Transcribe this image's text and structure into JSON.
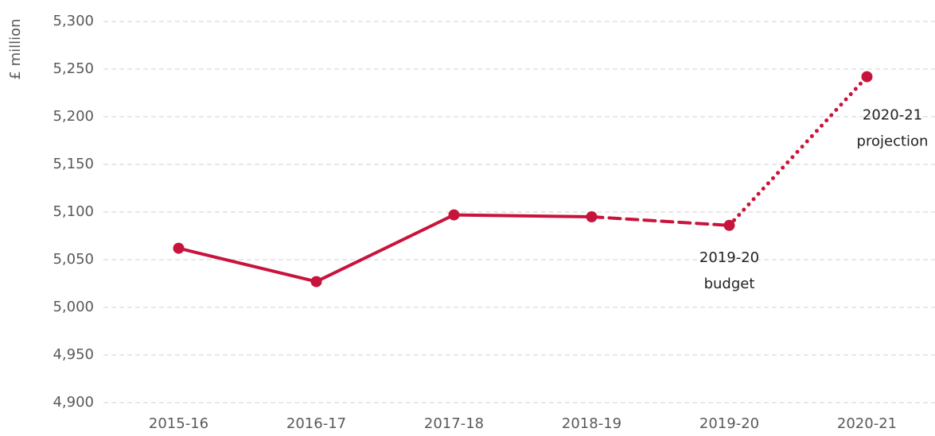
{
  "chart_data": {
    "type": "line",
    "y_label": "£ million",
    "categories": [
      "2015-16",
      "2016-17",
      "2017-18",
      "2018-19",
      "2019-20",
      "2020-21"
    ],
    "values": [
      5062,
      5027,
      5097,
      5095,
      5086,
      5242
    ],
    "color": "#c8143c",
    "segment_styles": [
      "solid",
      "solid",
      "solid",
      "dashed",
      "dotted"
    ],
    "ylim": [
      4900,
      5300
    ],
    "yticks": [
      {
        "value": 4900,
        "label": "4,900"
      },
      {
        "value": 4950,
        "label": "4,950"
      },
      {
        "value": 5000,
        "label": "5,000"
      },
      {
        "value": 5050,
        "label": "5,050"
      },
      {
        "value": 5100,
        "label": "5,100"
      },
      {
        "value": 5150,
        "label": "5,150"
      },
      {
        "value": 5200,
        "label": "5,200"
      },
      {
        "value": 5250,
        "label": "5,250"
      },
      {
        "value": 5300,
        "label": "5,300"
      }
    ],
    "grid": true,
    "annotations": [
      [
        "2019-20",
        "budget"
      ],
      [
        "2020-21",
        "projection"
      ]
    ]
  }
}
